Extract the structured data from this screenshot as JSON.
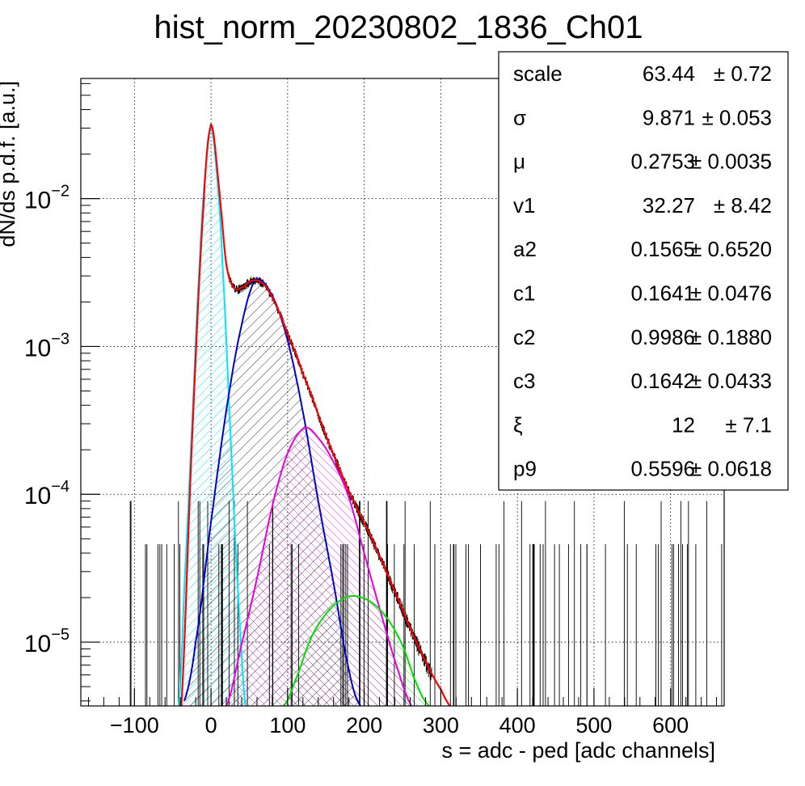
{
  "chart_data": {
    "type": "line",
    "title": "hist_norm_20230802_1836_Ch01",
    "xlabel": "s = adc - ped [adc channels]",
    "ylabel": "dN/ds p.d.f. [a.u.]",
    "xlim": [
      -170,
      670
    ],
    "ylim": [
      3.7e-06,
      0.065
    ],
    "yscale": "log",
    "grid": true,
    "x_ticks": [
      {
        "value": -100,
        "label": "−100"
      },
      {
        "value": 0,
        "label": "0"
      },
      {
        "value": 100,
        "label": "100"
      },
      {
        "value": 200,
        "label": "200"
      },
      {
        "value": 300,
        "label": "300"
      },
      {
        "value": 400,
        "label": "400"
      },
      {
        "value": 500,
        "label": "500"
      },
      {
        "value": 600,
        "label": "600"
      }
    ],
    "y_ticks": [
      {
        "value": 1e-05,
        "base": "10",
        "exp": "−5"
      },
      {
        "value": 0.0001,
        "base": "10",
        "exp": "−4"
      },
      {
        "value": 0.001,
        "base": "10",
        "exp": "−3"
      },
      {
        "value": 0.01,
        "base": "10",
        "exp": "−2"
      }
    ],
    "stats_box": {
      "placement": "top-right",
      "rows": [
        {
          "name": "scale",
          "value": "63.44",
          "error": "± 0.72"
        },
        {
          "name": "σ",
          "value": "9.871",
          "error": "± 0.053"
        },
        {
          "name": "μ",
          "value": "0.2753",
          "error": "± 0.0035"
        },
        {
          "name": "v1",
          "value": "32.27",
          "error": "± 8.42"
        },
        {
          "name": "a2",
          "value": "0.1565",
          "error": "± 0.6520"
        },
        {
          "name": "c1",
          "value": "0.1641",
          "error": "± 0.0476"
        },
        {
          "name": "c2",
          "value": "0.9986",
          "error": "± 0.1880"
        },
        {
          "name": "c3",
          "value": "0.1642",
          "error": "± 0.0433"
        },
        {
          "name": "ξ",
          "value": "12",
          "error": "± 7.1"
        },
        {
          "name": "p9",
          "value": "0.5596",
          "error": "± 0.0618"
        }
      ]
    },
    "series": [
      {
        "color": "#ff0000",
        "kind": "total-fit",
        "x": [
          -40,
          -25,
          -10,
          0,
          10,
          20,
          30,
          40,
          55,
          70,
          85,
          100,
          120,
          150,
          180,
          210,
          240,
          270,
          300,
          320
        ],
        "values": [
          3e-06,
          0.00022,
          0.0085,
          0.031,
          0.0125,
          0.0036,
          0.0025,
          0.0025,
          0.0028,
          0.0026,
          0.0019,
          0.0012,
          0.00065,
          0.00025,
          0.000105,
          5e-05,
          2.2e-05,
          9.5e-06,
          4.8e-06,
          3.3e-06
        ]
      },
      {
        "color": "#00e5ff",
        "kind": "pedestal",
        "fill": "hatched",
        "x": [
          -42,
          -35,
          -25,
          -15,
          -8,
          0,
          8,
          15,
          25,
          35,
          45
        ],
        "values": [
          3.7e-06,
          2.3e-05,
          0.00028,
          0.0036,
          0.014,
          0.03,
          0.014,
          0.0036,
          0.00028,
          2.3e-05,
          3.7e-06
        ]
      },
      {
        "color": "#0000cc",
        "kind": "1-p.e.",
        "fill": "hatched",
        "x": [
          -35,
          -20,
          0,
          20,
          40,
          58,
          80,
          100,
          120,
          140,
          160,
          180,
          195
        ],
        "values": [
          4e-06,
          1e-05,
          6.5e-05,
          0.00037,
          0.0014,
          0.0028,
          0.0022,
          0.0011,
          0.00036,
          9e-05,
          2.5e-05,
          6.5e-06,
          3.7e-06
        ]
      },
      {
        "color": "#e600e6",
        "kind": "2-p.e.",
        "fill": "hatched",
        "x": [
          20,
          40,
          60,
          80,
          100,
          122,
          140,
          160,
          180,
          200,
          220,
          240,
          262
        ],
        "values": [
          3.7e-06,
          9.7e-06,
          2.7e-05,
          8.3e-05,
          0.00019,
          0.00028,
          0.00024,
          0.000165,
          9.5e-05,
          4e-05,
          1.7e-05,
          7.5e-06,
          3.7e-06
        ]
      },
      {
        "color": "#00e000",
        "kind": "3-p.e.",
        "fill": "hatched",
        "x": [
          95,
          110,
          130,
          150,
          170,
          188,
          210,
          230,
          250,
          270,
          285
        ],
        "values": [
          3.7e-06,
          5.5e-06,
          1.05e-05,
          1.55e-05,
          1.93e-05,
          2.05e-05,
          1.85e-05,
          1.45e-05,
          9.5e-06,
          5e-06,
          3.7e-06
        ]
      }
    ]
  }
}
